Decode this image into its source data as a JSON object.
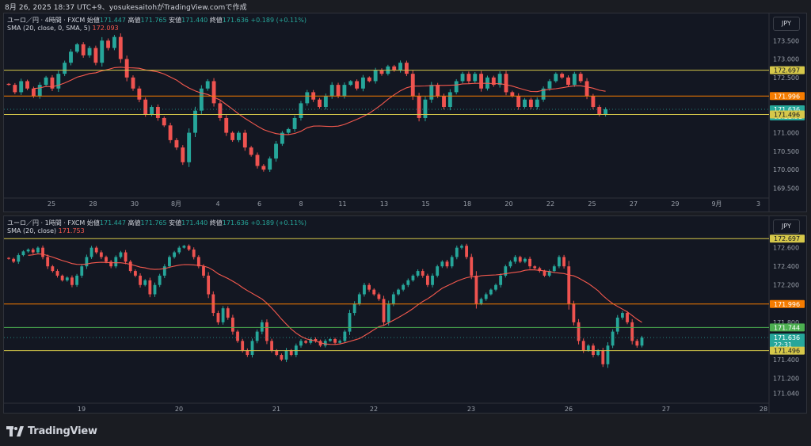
{
  "header": {
    "text": "8月 26, 2025 18:37 UTC+9、yosukesaitohがTradingView.comで作成"
  },
  "colors": {
    "up": "#26a69a",
    "down": "#ef5350",
    "sma": "#f5594e",
    "line_yellow": "#d6c84a",
    "line_orange": "#f57c00",
    "line_green": "#4caf50"
  },
  "panels": [
    {
      "legend": {
        "title": "ユーロ／円 · 4時間 · FXCM",
        "open_label": "始値",
        "open": "171.447",
        "high_label": "高値",
        "high": "171.765",
        "low_label": "安値",
        "low": "171.440",
        "close_label": "終値",
        "close": "171.636",
        "change": "+0.189 (+0.11%)",
        "sma_label": "SMA (20, close, 0, SMA, 5)",
        "sma_value": "172.093"
      },
      "currency": "JPY"
    },
    {
      "legend": {
        "title": "ユーロ／円 · 1時間 · FXCM",
        "open_label": "始値",
        "open": "171.447",
        "high_label": "高値",
        "high": "171.765",
        "low_label": "安値",
        "low": "171.440",
        "close_label": "終値",
        "close": "171.636",
        "change": "+0.189 (+0.11%)",
        "sma_label": "SMA (20, close)",
        "sma_value": "171.753"
      },
      "currency": "JPY"
    }
  ],
  "footer": {
    "brand": "TradingView",
    "logo_icon": "tradingview-logo-icon"
  },
  "chart_data": [
    {
      "type": "candlestick",
      "title": "ユーロ／円 · 4時間 · FXCM",
      "ylim": [
        169.25,
        173.85
      ],
      "y_ticks": [
        "169.500",
        "170.000",
        "170.500",
        "171.000",
        "171.500",
        "172.000",
        "172.500",
        "173.000",
        "173.500"
      ],
      "x_ticks": [
        "25",
        "28",
        "30",
        "8月",
        "4",
        "6",
        "8",
        "11",
        "13",
        "15",
        "18",
        "20",
        "22",
        "25",
        "27",
        "29",
        "9月",
        "3"
      ],
      "closes": [
        172.3,
        172.1,
        172.4,
        172.2,
        172.0,
        172.3,
        172.5,
        172.2,
        172.6,
        172.9,
        173.2,
        173.4,
        173.1,
        173.3,
        172.9,
        173.5,
        173.3,
        173.6,
        173.0,
        172.5,
        172.2,
        171.9,
        171.5,
        171.7,
        171.4,
        171.2,
        170.8,
        170.6,
        170.2,
        171.0,
        171.6,
        172.2,
        172.4,
        171.8,
        171.4,
        171.0,
        170.8,
        171.0,
        170.6,
        170.4,
        170.1,
        170.0,
        170.3,
        170.7,
        171.0,
        171.1,
        171.4,
        171.8,
        172.1,
        171.9,
        171.7,
        172.0,
        172.3,
        172.0,
        172.3,
        172.4,
        172.2,
        172.5,
        172.4,
        172.7,
        172.6,
        172.8,
        172.7,
        172.9,
        172.6,
        172.0,
        171.4,
        171.9,
        172.3,
        172.0,
        171.7,
        172.1,
        172.4,
        172.6,
        172.4,
        172.6,
        172.2,
        172.5,
        172.3,
        172.6,
        172.1,
        172.0,
        171.7,
        171.9,
        171.7,
        171.9,
        172.2,
        172.4,
        172.6,
        172.5,
        172.3,
        172.6,
        172.4,
        172.0,
        171.7,
        171.5,
        171.636
      ],
      "sma": {
        "label": "SMA (20, close, 0, SMA, 5)",
        "last": "172.093"
      },
      "levels": [
        {
          "value": 172.697,
          "label": "172.697",
          "color": "line_yellow"
        },
        {
          "value": 171.996,
          "label": "171.996",
          "color": "line_orange"
        },
        {
          "value": 171.636,
          "label": "171.636",
          "sub": "03:22:31",
          "color": "up"
        },
        {
          "value": 171.496,
          "label": "171.496",
          "color": "line_yellow"
        }
      ]
    },
    {
      "type": "candlestick",
      "title": "ユーロ／円 · 1時間 · FXCM",
      "ylim": [
        171.0,
        172.75
      ],
      "y_ticks": [
        "171.040",
        "171.200",
        "171.400",
        "171.600",
        "171.800",
        "172.000",
        "172.200",
        "172.400",
        "172.600"
      ],
      "x_ticks": [
        "19",
        "20",
        "21",
        "22",
        "23",
        "26",
        "27",
        "28"
      ],
      "closes": [
        172.48,
        172.45,
        172.52,
        172.56,
        172.58,
        172.55,
        172.6,
        172.5,
        172.4,
        172.35,
        172.3,
        172.25,
        172.28,
        172.2,
        172.3,
        172.4,
        172.5,
        172.6,
        172.55,
        172.5,
        172.45,
        172.4,
        172.5,
        172.55,
        172.45,
        172.35,
        172.3,
        172.2,
        172.25,
        172.1,
        172.2,
        172.3,
        172.4,
        172.5,
        172.55,
        172.6,
        172.62,
        172.58,
        172.5,
        172.4,
        172.3,
        172.1,
        171.9,
        171.8,
        171.95,
        171.85,
        171.7,
        171.6,
        171.5,
        171.45,
        171.6,
        171.7,
        171.8,
        171.6,
        171.5,
        171.45,
        171.4,
        171.5,
        171.45,
        171.55,
        171.6,
        171.58,
        171.62,
        171.6,
        171.55,
        171.6,
        171.62,
        171.58,
        171.6,
        171.7,
        171.9,
        172.0,
        172.1,
        172.2,
        172.15,
        172.1,
        172.05,
        171.8,
        172.0,
        172.1,
        172.15,
        172.2,
        172.25,
        172.3,
        172.35,
        172.3,
        172.2,
        172.3,
        172.4,
        172.45,
        172.4,
        172.5,
        172.6,
        172.62,
        172.5,
        172.3,
        172.0,
        172.05,
        172.1,
        172.15,
        172.2,
        172.3,
        172.4,
        172.45,
        172.5,
        172.45,
        172.48,
        172.4,
        172.38,
        172.35,
        172.3,
        172.35,
        172.4,
        172.5,
        172.4,
        172.0,
        171.8,
        171.6,
        171.5,
        171.55,
        171.45,
        171.5,
        171.35,
        171.55,
        171.7,
        171.85,
        171.9,
        171.8,
        171.6,
        171.55,
        171.636
      ],
      "sma": {
        "label": "SMA (20, close)",
        "last": "171.753"
      },
      "levels": [
        {
          "value": 172.697,
          "label": "172.697",
          "color": "line_yellow"
        },
        {
          "value": 171.996,
          "label": "171.996",
          "color": "line_orange"
        },
        {
          "value": 171.744,
          "label": "171.744",
          "color": "line_green"
        },
        {
          "value": 171.636,
          "label": "171.636",
          "sub": "22:31",
          "color": "up"
        },
        {
          "value": 171.496,
          "label": "171.496",
          "color": "line_yellow"
        }
      ]
    }
  ]
}
